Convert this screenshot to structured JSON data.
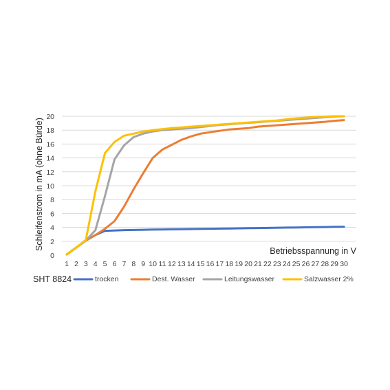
{
  "product_label": "SHT 8824",
  "chart_data": {
    "type": "line",
    "xlabel": "Betriebsspannung in V",
    "ylabel": "Schleifenstrom in mA  (ohne Bürde)",
    "ylim": [
      0,
      20
    ],
    "yticks": [
      0,
      2,
      4,
      6,
      8,
      10,
      12,
      14,
      16,
      18,
      20
    ],
    "grid": true,
    "legend_position": "bottom",
    "x": [
      1,
      2,
      3,
      4,
      5,
      6,
      7,
      8,
      9,
      10,
      11,
      12,
      13,
      14,
      15,
      16,
      17,
      18,
      19,
      20,
      21,
      22,
      23,
      24,
      25,
      26,
      27,
      28,
      29,
      30
    ],
    "series": [
      {
        "name": "trocken",
        "color": "#4472c4",
        "values": [
          0.1,
          1.1,
          2.1,
          2.9,
          3.5,
          3.55,
          3.6,
          3.62,
          3.65,
          3.68,
          3.7,
          3.72,
          3.74,
          3.76,
          3.78,
          3.8,
          3.82,
          3.84,
          3.86,
          3.88,
          3.9,
          3.92,
          3.95,
          3.97,
          3.99,
          4.01,
          4.03,
          4.05,
          4.08,
          4.1
        ]
      },
      {
        "name": "Dest. Wasser",
        "color": "#ed7d31",
        "values": [
          0.1,
          1.1,
          2.1,
          2.9,
          3.8,
          4.9,
          7.0,
          9.5,
          11.8,
          14.0,
          15.2,
          15.9,
          16.6,
          17.1,
          17.5,
          17.7,
          17.9,
          18.1,
          18.2,
          18.3,
          18.5,
          18.6,
          18.7,
          18.8,
          18.9,
          19.0,
          19.1,
          19.2,
          19.35,
          19.45
        ]
      },
      {
        "name": "Leitungswasser",
        "color": "#a5a5a5",
        "values": [
          0.1,
          1.1,
          2.1,
          3.6,
          8.5,
          13.8,
          15.8,
          17.0,
          17.5,
          17.8,
          18.0,
          18.1,
          18.2,
          18.3,
          18.45,
          18.6,
          18.75,
          18.85,
          18.95,
          19.05,
          19.15,
          19.25,
          19.35,
          19.45,
          19.55,
          19.65,
          19.75,
          19.85,
          19.95,
          20.0
        ]
      },
      {
        "name": "Salzwasser 2%",
        "color": "#ffc000",
        "values": [
          0.1,
          1.1,
          2.2,
          9.2,
          14.7,
          16.3,
          17.2,
          17.5,
          17.8,
          18.0,
          18.15,
          18.3,
          18.4,
          18.5,
          18.6,
          18.7,
          18.8,
          18.9,
          19.0,
          19.1,
          19.2,
          19.3,
          19.4,
          19.55,
          19.7,
          19.8,
          19.9,
          19.95,
          20.0,
          20.0
        ]
      }
    ]
  }
}
